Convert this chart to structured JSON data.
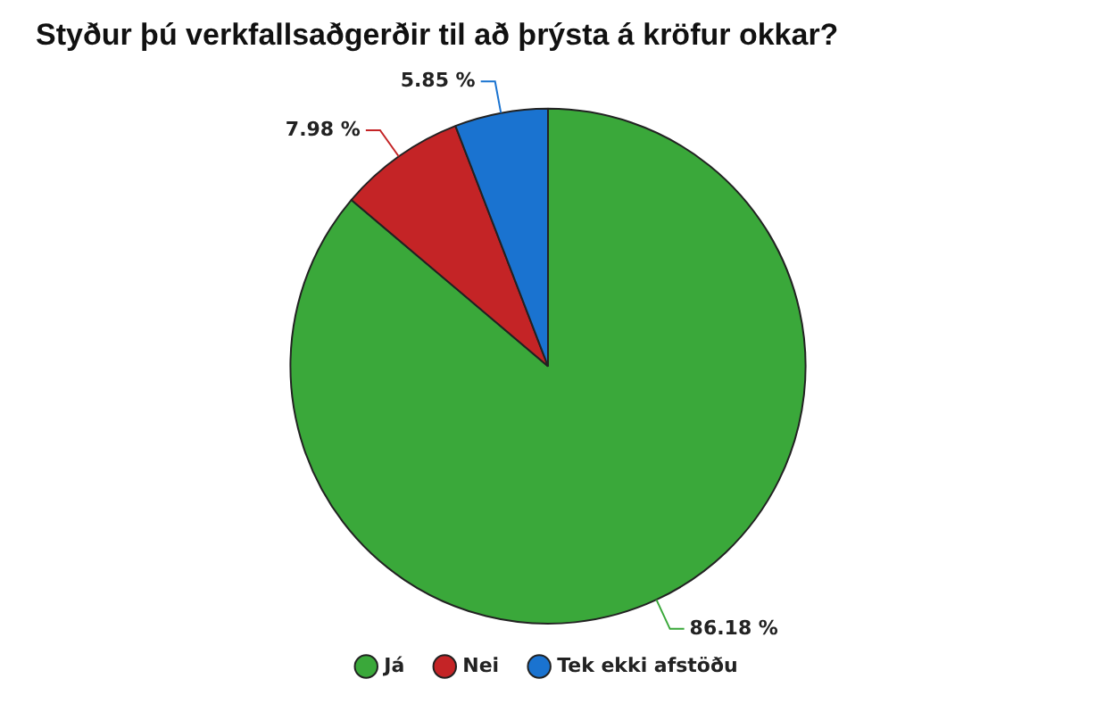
{
  "chart_data": {
    "type": "pie",
    "title": "Styður þú verkfallsaðgerðir til að þrýsta á kröfur okkar?",
    "categories": [
      "Já",
      "Nei",
      "Tek ekki afstöðu"
    ],
    "values": [
      86.18,
      7.98,
      5.85
    ],
    "colors": [
      "#3aa83a",
      "#c42426",
      "#1a73d0"
    ],
    "value_labels": [
      "86.18 %",
      "7.98 %",
      "5.85 %"
    ],
    "legend": "bottom"
  }
}
